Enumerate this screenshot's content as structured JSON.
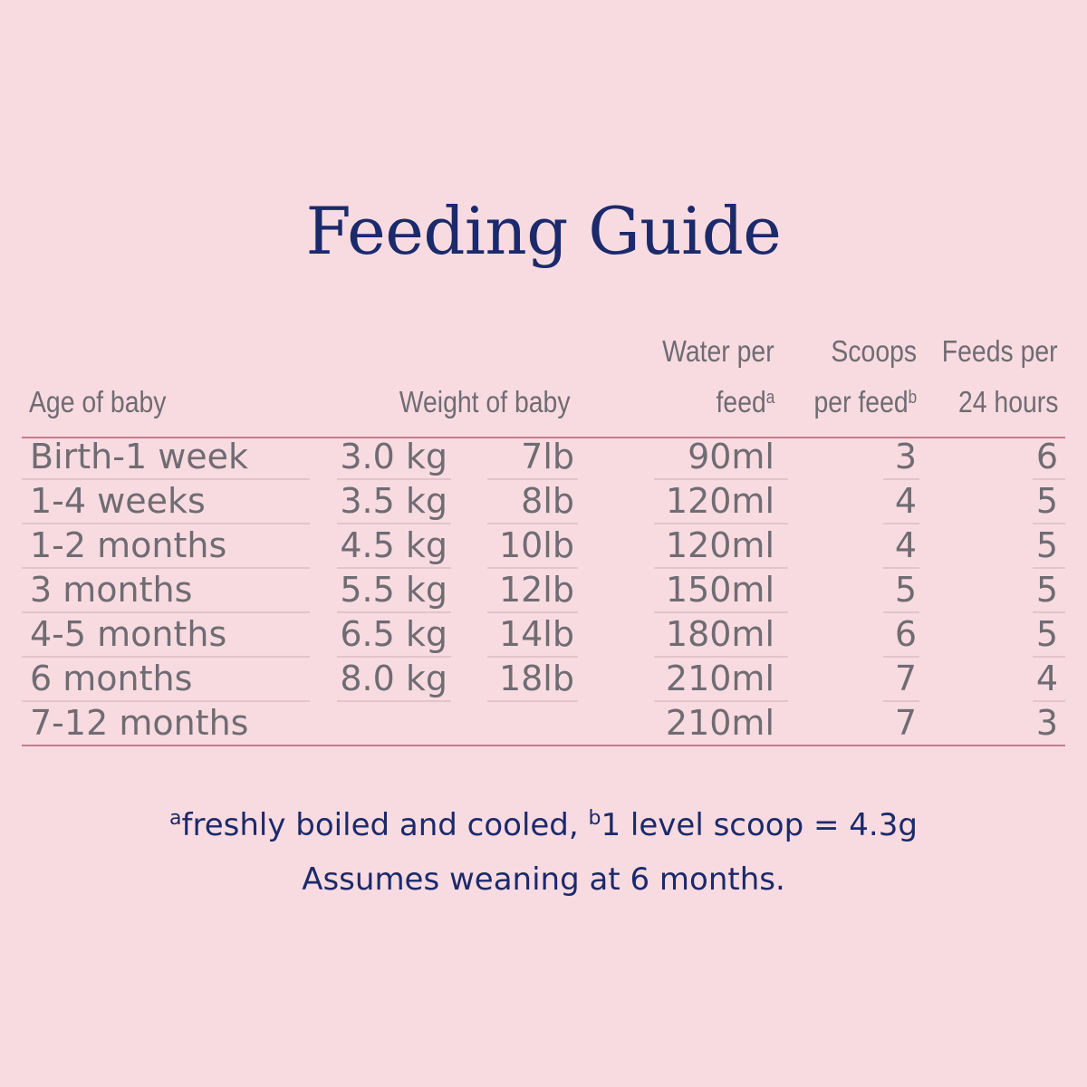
{
  "title": "Feeding Guide",
  "header": {
    "age": "Age of baby",
    "weight": "Weight of baby",
    "water_line1": "Water per",
    "water_line2": "feed",
    "water_sup": "a",
    "scoops_line1": "Scoops",
    "scoops_line2": "per feed",
    "scoops_sup": "b",
    "feeds_line1": "Feeds per",
    "feeds_line2": "24 hours"
  },
  "rows": [
    {
      "age": "Birth-1 week",
      "kg": "3.0 kg",
      "lb": "7lb",
      "water": "90ml",
      "scoops": "3",
      "feeds": "6"
    },
    {
      "age": "1-4 weeks",
      "kg": "3.5 kg",
      "lb": "8lb",
      "water": "120ml",
      "scoops": "4",
      "feeds": "5"
    },
    {
      "age": "1-2 months",
      "kg": "4.5 kg",
      "lb": "10lb",
      "water": "120ml",
      "scoops": "4",
      "feeds": "5"
    },
    {
      "age": "3 months",
      "kg": "5.5 kg",
      "lb": "12lb",
      "water": "150ml",
      "scoops": "5",
      "feeds": "5"
    },
    {
      "age": "4-5 months",
      "kg": "6.5 kg",
      "lb": "14lb",
      "water": "180ml",
      "scoops": "6",
      "feeds": "5"
    },
    {
      "age": "6 months",
      "kg": "8.0 kg",
      "lb": "18lb",
      "water": "210ml",
      "scoops": "7",
      "feeds": "4"
    },
    {
      "age": "7-12 months",
      "kg": "",
      "lb": "",
      "water": "210ml",
      "scoops": "7",
      "feeds": "3"
    }
  ],
  "footnote": {
    "a_mark": "a",
    "a_text": "freshly boiled and cooled, ",
    "b_mark": "b",
    "b_text": "1 level scoop = 4.3g",
    "line2": "Assumes weaning at 6 months."
  },
  "colors": {
    "background": "#f8dbe1",
    "title": "#1b2a6b",
    "table_text": "#6f6c72",
    "rule": "#c57b8a"
  }
}
